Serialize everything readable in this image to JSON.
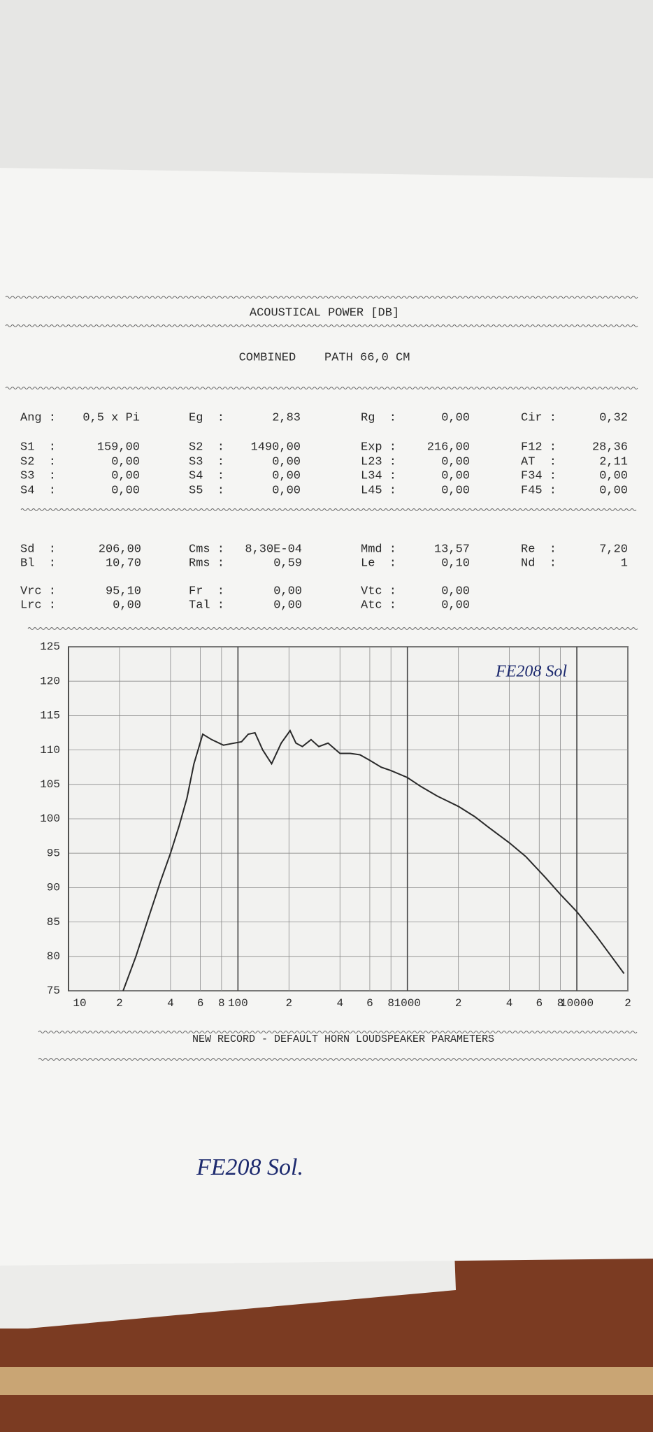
{
  "header": {
    "title": "ACOUSTICAL POWER [DB]",
    "subtitle": "COMBINED    PATH 66,0 CM"
  },
  "general": {
    "rows": [
      [
        {
          "label": "Ang :",
          "value": "0,5 x Pi"
        },
        {
          "label": "Eg  :",
          "value": "2,83"
        },
        {
          "label": "Rg  :",
          "value": "0,00"
        },
        {
          "label": "Cir :",
          "value": "0,32"
        }
      ],
      [
        {
          "label": "S1  :",
          "value": "159,00"
        },
        {
          "label": "S2  :",
          "value": "1490,00"
        },
        {
          "label": "Exp :",
          "value": "216,00"
        },
        {
          "label": "F12 :",
          "value": "28,36"
        }
      ],
      [
        {
          "label": "S2  :",
          "value": "0,00"
        },
        {
          "label": "S3  :",
          "value": "0,00"
        },
        {
          "label": "L23 :",
          "value": "0,00"
        },
        {
          "label": "AT  :",
          "value": "2,11"
        }
      ],
      [
        {
          "label": "S3  :",
          "value": "0,00"
        },
        {
          "label": "S4  :",
          "value": "0,00"
        },
        {
          "label": "L34 :",
          "value": "0,00"
        },
        {
          "label": "F34 :",
          "value": "0,00"
        }
      ],
      [
        {
          "label": "S4  :",
          "value": "0,00"
        },
        {
          "label": "S5  :",
          "value": "0,00"
        },
        {
          "label": "L45 :",
          "value": "0,00"
        },
        {
          "label": "F45 :",
          "value": "0,00"
        }
      ]
    ]
  },
  "driver": {
    "rows": [
      [
        {
          "label": "Sd  :",
          "value": "206,00"
        },
        {
          "label": "Cms :",
          "value": "8,30E-04"
        },
        {
          "label": "Mmd :",
          "value": "13,57"
        },
        {
          "label": "Re  :",
          "value": "7,20"
        }
      ],
      [
        {
          "label": "Bl  :",
          "value": "10,70"
        },
        {
          "label": "Rms :",
          "value": "0,59"
        },
        {
          "label": "Le  :",
          "value": "0,10"
        },
        {
          "label": "Nd  :",
          "value": "1"
        }
      ],
      [
        {
          "label": "Vrc :",
          "value": "95,10"
        },
        {
          "label": "Fr  :",
          "value": "0,00"
        },
        {
          "label": "Vtc :",
          "value": "0,00"
        }
      ],
      [
        {
          "label": "Lrc :",
          "value": "0,00"
        },
        {
          "label": "Tal :",
          "value": "0,00"
        },
        {
          "label": "Atc :",
          "value": "0,00"
        }
      ]
    ]
  },
  "chart_data": {
    "type": "line",
    "annotation": "FE208 Sol",
    "x": [
      21,
      25,
      30,
      35,
      40,
      45,
      50,
      55,
      62,
      70,
      82,
      95,
      105,
      115,
      126,
      140,
      158,
      180,
      203,
      220,
      240,
      270,
      300,
      340,
      400,
      460,
      525,
      600,
      700,
      800,
      1000,
      1200,
      1500,
      2000,
      2500,
      3000,
      4000,
      5000,
      6500,
      8000,
      10000,
      13000,
      16000,
      19000
    ],
    "series": [
      {
        "color": "#2a2a2a",
        "values": [
          75,
          80,
          86,
          91,
          95,
          99,
          103,
          108,
          112.3,
          111.5,
          110.7,
          111,
          111.2,
          112.3,
          112.5,
          110,
          108,
          111,
          112.8,
          111,
          110.5,
          111.5,
          110.5,
          111,
          109.5,
          109.5,
          109.3,
          108.5,
          107.5,
          107,
          106,
          104.7,
          103.3,
          101.8,
          100.3,
          98.8,
          96.5,
          94.5,
          91.5,
          89,
          86.5,
          83,
          80,
          77.5
        ]
      }
    ],
    "xlim": [
      10,
      20000
    ],
    "xlog": true,
    "xticks": [
      10,
      {
        "value": 20,
        "label": "2"
      },
      {
        "value": 40,
        "label": "4"
      },
      {
        "value": 60,
        "label": "6"
      },
      {
        "value": 80,
        "label": "8"
      },
      100,
      {
        "value": 200,
        "label": "2"
      },
      {
        "value": 400,
        "label": "4"
      },
      {
        "value": 600,
        "label": "6"
      },
      {
        "value": 800,
        "label": "8"
      },
      1000,
      {
        "value": 2000,
        "label": "2"
      },
      {
        "value": 4000,
        "label": "4"
      },
      {
        "value": 6000,
        "label": "6"
      },
      {
        "value": 8000,
        "label": "8"
      },
      10000,
      {
        "value": 20000,
        "label": "2"
      }
    ],
    "ylim": [
      75,
      125
    ],
    "yticks": [
      75,
      80,
      85,
      90,
      95,
      100,
      105,
      110,
      115,
      120,
      125
    ],
    "grid": true
  },
  "footer": {
    "note": "NEW RECORD - DEFAULT HORN LOUDSPEAKER PARAMETERS",
    "handwriting": "FE208 Sol."
  }
}
